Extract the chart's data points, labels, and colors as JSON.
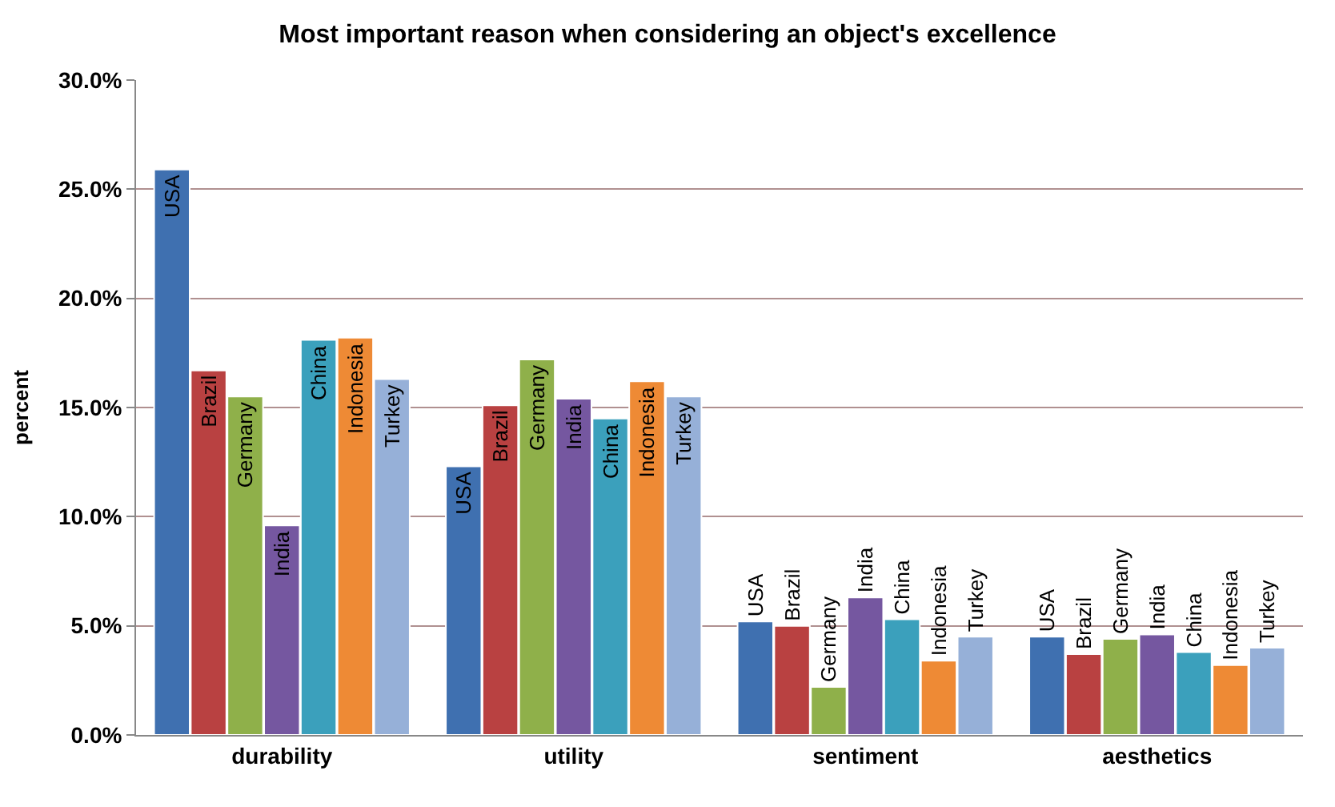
{
  "chart_data": {
    "type": "bar",
    "title": "Most important reason when considering an object's excellence",
    "ylabel": "percent",
    "categories": [
      "durability",
      "utility",
      "sentiment",
      "aesthetics"
    ],
    "series": [
      {
        "name": "USA",
        "color": "#3f70b0",
        "values": [
          25.9,
          12.3,
          5.2,
          4.5
        ]
      },
      {
        "name": "Brazil",
        "color": "#b94141",
        "values": [
          16.7,
          15.1,
          5.0,
          3.7
        ]
      },
      {
        "name": "Germany",
        "color": "#8fb04a",
        "values": [
          15.5,
          17.2,
          2.2,
          4.4
        ]
      },
      {
        "name": "India",
        "color": "#7557a0",
        "values": [
          9.6,
          15.4,
          6.3,
          4.6
        ]
      },
      {
        "name": "China",
        "color": "#3ba0bc",
        "values": [
          18.1,
          14.5,
          5.3,
          3.8
        ]
      },
      {
        "name": "Indonesia",
        "color": "#ee8a35",
        "values": [
          18.2,
          16.2,
          3.4,
          3.2
        ]
      },
      {
        "name": "Turkey",
        "color": "#96b0d8",
        "values": [
          16.3,
          15.5,
          4.5,
          4.0
        ]
      }
    ],
    "ylim": [
      0,
      30
    ],
    "yticks": [
      {
        "value": 0,
        "label": "0.0%"
      },
      {
        "value": 5,
        "label": "5.0%"
      },
      {
        "value": 10,
        "label": "10.0%"
      },
      {
        "value": 15,
        "label": "15.0%"
      },
      {
        "value": 20,
        "label": "20.0%"
      },
      {
        "value": 25,
        "label": "25.0%"
      },
      {
        "value": 30,
        "label": "30.0%"
      }
    ],
    "grid": "y",
    "legend": false
  }
}
